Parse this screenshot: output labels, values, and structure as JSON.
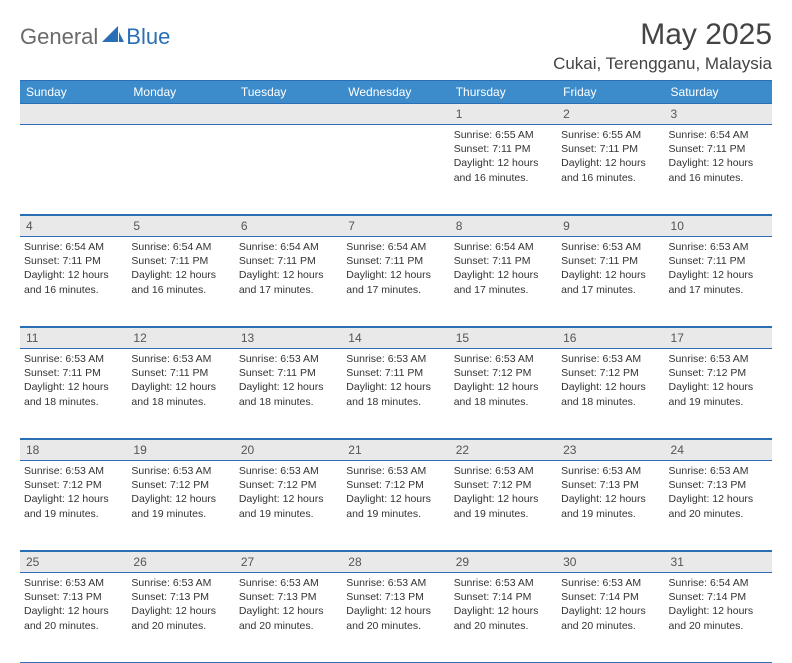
{
  "brand": {
    "part1": "General",
    "part2": "Blue"
  },
  "title": "May 2025",
  "location": "Cukai, Terengganu, Malaysia",
  "colors": {
    "header_bg": "#3c8ccb",
    "header_border": "#2a6fb5",
    "daynum_bg": "#e9e9e9",
    "text": "#333333",
    "brand_gray": "#6a6a6a",
    "brand_blue": "#2a6fb5",
    "page_bg": "#ffffff"
  },
  "font_family": "Arial",
  "day_headers": [
    "Sunday",
    "Monday",
    "Tuesday",
    "Wednesday",
    "Thursday",
    "Friday",
    "Saturday"
  ],
  "weeks": [
    [
      {
        "num": "",
        "sunrise": "",
        "sunset": "",
        "daylight": ""
      },
      {
        "num": "",
        "sunrise": "",
        "sunset": "",
        "daylight": ""
      },
      {
        "num": "",
        "sunrise": "",
        "sunset": "",
        "daylight": ""
      },
      {
        "num": "",
        "sunrise": "",
        "sunset": "",
        "daylight": ""
      },
      {
        "num": "1",
        "sunrise": "Sunrise: 6:55 AM",
        "sunset": "Sunset: 7:11 PM",
        "daylight": "Daylight: 12 hours and 16 minutes."
      },
      {
        "num": "2",
        "sunrise": "Sunrise: 6:55 AM",
        "sunset": "Sunset: 7:11 PM",
        "daylight": "Daylight: 12 hours and 16 minutes."
      },
      {
        "num": "3",
        "sunrise": "Sunrise: 6:54 AM",
        "sunset": "Sunset: 7:11 PM",
        "daylight": "Daylight: 12 hours and 16 minutes."
      }
    ],
    [
      {
        "num": "4",
        "sunrise": "Sunrise: 6:54 AM",
        "sunset": "Sunset: 7:11 PM",
        "daylight": "Daylight: 12 hours and 16 minutes."
      },
      {
        "num": "5",
        "sunrise": "Sunrise: 6:54 AM",
        "sunset": "Sunset: 7:11 PM",
        "daylight": "Daylight: 12 hours and 16 minutes."
      },
      {
        "num": "6",
        "sunrise": "Sunrise: 6:54 AM",
        "sunset": "Sunset: 7:11 PM",
        "daylight": "Daylight: 12 hours and 17 minutes."
      },
      {
        "num": "7",
        "sunrise": "Sunrise: 6:54 AM",
        "sunset": "Sunset: 7:11 PM",
        "daylight": "Daylight: 12 hours and 17 minutes."
      },
      {
        "num": "8",
        "sunrise": "Sunrise: 6:54 AM",
        "sunset": "Sunset: 7:11 PM",
        "daylight": "Daylight: 12 hours and 17 minutes."
      },
      {
        "num": "9",
        "sunrise": "Sunrise: 6:53 AM",
        "sunset": "Sunset: 7:11 PM",
        "daylight": "Daylight: 12 hours and 17 minutes."
      },
      {
        "num": "10",
        "sunrise": "Sunrise: 6:53 AM",
        "sunset": "Sunset: 7:11 PM",
        "daylight": "Daylight: 12 hours and 17 minutes."
      }
    ],
    [
      {
        "num": "11",
        "sunrise": "Sunrise: 6:53 AM",
        "sunset": "Sunset: 7:11 PM",
        "daylight": "Daylight: 12 hours and 18 minutes."
      },
      {
        "num": "12",
        "sunrise": "Sunrise: 6:53 AM",
        "sunset": "Sunset: 7:11 PM",
        "daylight": "Daylight: 12 hours and 18 minutes."
      },
      {
        "num": "13",
        "sunrise": "Sunrise: 6:53 AM",
        "sunset": "Sunset: 7:11 PM",
        "daylight": "Daylight: 12 hours and 18 minutes."
      },
      {
        "num": "14",
        "sunrise": "Sunrise: 6:53 AM",
        "sunset": "Sunset: 7:11 PM",
        "daylight": "Daylight: 12 hours and 18 minutes."
      },
      {
        "num": "15",
        "sunrise": "Sunrise: 6:53 AM",
        "sunset": "Sunset: 7:12 PM",
        "daylight": "Daylight: 12 hours and 18 minutes."
      },
      {
        "num": "16",
        "sunrise": "Sunrise: 6:53 AM",
        "sunset": "Sunset: 7:12 PM",
        "daylight": "Daylight: 12 hours and 18 minutes."
      },
      {
        "num": "17",
        "sunrise": "Sunrise: 6:53 AM",
        "sunset": "Sunset: 7:12 PM",
        "daylight": "Daylight: 12 hours and 19 minutes."
      }
    ],
    [
      {
        "num": "18",
        "sunrise": "Sunrise: 6:53 AM",
        "sunset": "Sunset: 7:12 PM",
        "daylight": "Daylight: 12 hours and 19 minutes."
      },
      {
        "num": "19",
        "sunrise": "Sunrise: 6:53 AM",
        "sunset": "Sunset: 7:12 PM",
        "daylight": "Daylight: 12 hours and 19 minutes."
      },
      {
        "num": "20",
        "sunrise": "Sunrise: 6:53 AM",
        "sunset": "Sunset: 7:12 PM",
        "daylight": "Daylight: 12 hours and 19 minutes."
      },
      {
        "num": "21",
        "sunrise": "Sunrise: 6:53 AM",
        "sunset": "Sunset: 7:12 PM",
        "daylight": "Daylight: 12 hours and 19 minutes."
      },
      {
        "num": "22",
        "sunrise": "Sunrise: 6:53 AM",
        "sunset": "Sunset: 7:12 PM",
        "daylight": "Daylight: 12 hours and 19 minutes."
      },
      {
        "num": "23",
        "sunrise": "Sunrise: 6:53 AM",
        "sunset": "Sunset: 7:13 PM",
        "daylight": "Daylight: 12 hours and 19 minutes."
      },
      {
        "num": "24",
        "sunrise": "Sunrise: 6:53 AM",
        "sunset": "Sunset: 7:13 PM",
        "daylight": "Daylight: 12 hours and 20 minutes."
      }
    ],
    [
      {
        "num": "25",
        "sunrise": "Sunrise: 6:53 AM",
        "sunset": "Sunset: 7:13 PM",
        "daylight": "Daylight: 12 hours and 20 minutes."
      },
      {
        "num": "26",
        "sunrise": "Sunrise: 6:53 AM",
        "sunset": "Sunset: 7:13 PM",
        "daylight": "Daylight: 12 hours and 20 minutes."
      },
      {
        "num": "27",
        "sunrise": "Sunrise: 6:53 AM",
        "sunset": "Sunset: 7:13 PM",
        "daylight": "Daylight: 12 hours and 20 minutes."
      },
      {
        "num": "28",
        "sunrise": "Sunrise: 6:53 AM",
        "sunset": "Sunset: 7:13 PM",
        "daylight": "Daylight: 12 hours and 20 minutes."
      },
      {
        "num": "29",
        "sunrise": "Sunrise: 6:53 AM",
        "sunset": "Sunset: 7:14 PM",
        "daylight": "Daylight: 12 hours and 20 minutes."
      },
      {
        "num": "30",
        "sunrise": "Sunrise: 6:53 AM",
        "sunset": "Sunset: 7:14 PM",
        "daylight": "Daylight: 12 hours and 20 minutes."
      },
      {
        "num": "31",
        "sunrise": "Sunrise: 6:54 AM",
        "sunset": "Sunset: 7:14 PM",
        "daylight": "Daylight: 12 hours and 20 minutes."
      }
    ]
  ]
}
